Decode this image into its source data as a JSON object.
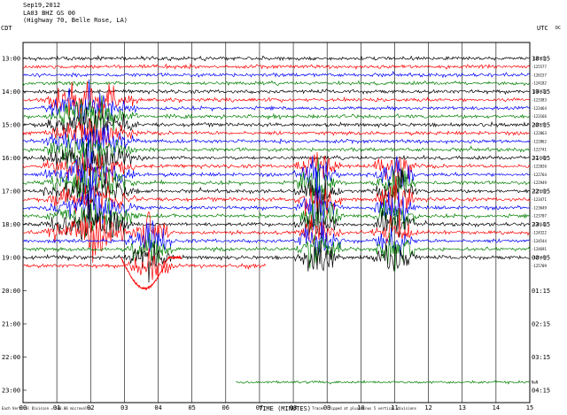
{
  "header": {
    "date": "Sep19,2012",
    "station": "LA03 BHZ GS 00",
    "location": "(Highway 70, Belle Rose, LA)"
  },
  "axis": {
    "left_label": "CDT",
    "right_label": "UTC",
    "right_label2": "DC",
    "xlabel": "TIME (MINUTES)",
    "footer_left": "Each Vertical Division = 500.00 microvolts",
    "footer_right": "Traces clipped at plus/minus 5 vertical divisions"
  },
  "colors": {
    "black": "#000000",
    "red": "#ff0000",
    "blue": "#0000ff",
    "green": "#008000",
    "grid": "#000000"
  },
  "chart_data": {
    "type": "line",
    "title": "Sep19,2012 LA03 BHZ GS 00 (Highway 70, Belle Rose, LA)",
    "xlabel": "TIME (MINUTES)",
    "ylabel": "CDT",
    "xlim": [
      0,
      15
    ],
    "x_ticks": [
      "00",
      "01",
      "02",
      "03",
      "04",
      "05",
      "06",
      "07",
      "08",
      "09",
      "10",
      "11",
      "12",
      "13",
      "14",
      "15"
    ],
    "left_ticks": [
      "13:00",
      "14:00",
      "15:00",
      "16:00",
      "17:00",
      "18:00",
      "19:00",
      "20:00",
      "21:00",
      "22:00",
      "23:00"
    ],
    "right_ticks": [
      "18:15",
      "19:15",
      "20:15",
      "21:15",
      "22:15",
      "23:15",
      "00:15",
      "01:15",
      "02:15",
      "03:15",
      "04:15"
    ],
    "trace_colors": [
      "black",
      "red",
      "blue",
      "green"
    ],
    "dc_values": [
      "-125026",
      "-125577",
      "-126157",
      "-124182",
      "-123928",
      "-123383",
      "-123464",
      "-123166",
      "-120195",
      "-122063",
      "-122862",
      "-122741",
      "-122589",
      "-122826",
      "-122764",
      "-122949",
      "-123169",
      "-123471",
      "-123649",
      "-123707",
      "-124146",
      "-124322",
      "-124544",
      "-124691",
      "-125444",
      "-125709",
      "NaN"
    ],
    "events": [
      {
        "hour": "15:00-18:00",
        "minutes": [
          0.5,
          3.5
        ],
        "description": "large red/green bursts"
      },
      {
        "hour": "17:30-19:00",
        "minutes": [
          8.0,
          9.5
        ],
        "description": "large blue bursts"
      },
      {
        "hour": "17:30-19:00",
        "minutes": [
          10.3,
          11.7
        ],
        "description": "large blue bursts"
      },
      {
        "hour": "19:00-20:00",
        "minutes": [
          3.0,
          4.5
        ],
        "description": "red trace drift"
      }
    ],
    "grid": true
  }
}
